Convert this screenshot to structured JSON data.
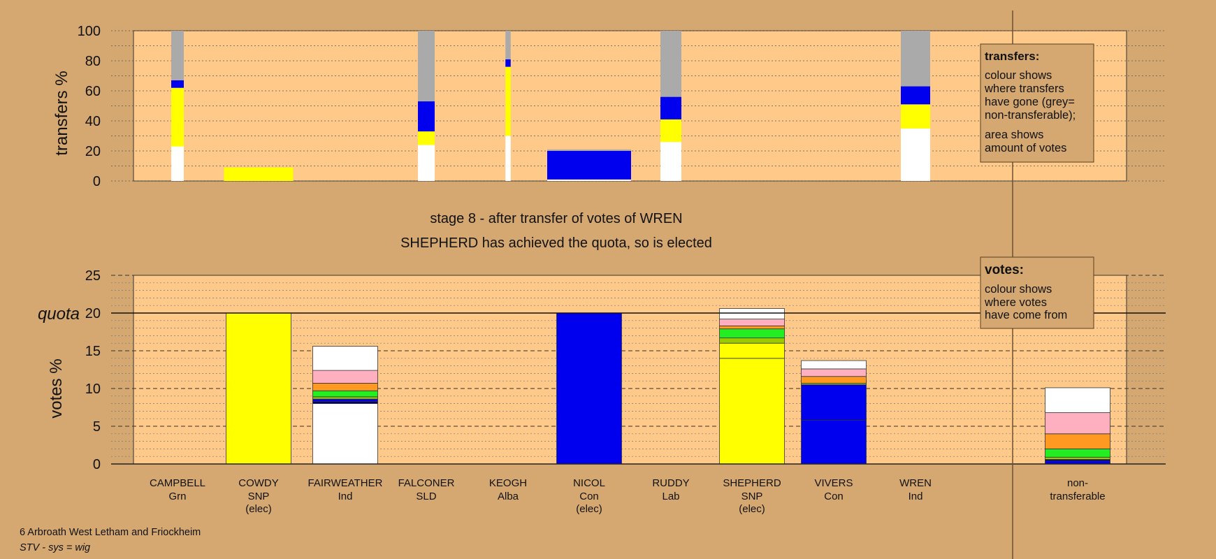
{
  "colors": {
    "background": "#d4a870",
    "plot_bg": "#ffc98a",
    "yellow": "#ffff00",
    "blue": "#0000ee",
    "grey": "#aaaaaa",
    "white": "#ffffff",
    "green": "#22ee22",
    "orange": "#ff9922",
    "pink": "#ffb0c0",
    "olive": "#99cc00",
    "navy": "#000080"
  },
  "title_line1": "stage 8 - after transfer of votes of WREN",
  "title_line2": "SHEPHERD has achieved the quota, so is elected",
  "footer": {
    "ward": "6 Arbroath West Letham and Friockheim",
    "system": "STV - sys = wig"
  },
  "legend_transfers": {
    "title": "transfers:",
    "lines1": [
      "colour shows",
      "where transfers",
      "have gone (grey=",
      "non-transferable);"
    ],
    "lines2": [
      "area shows",
      "amount of votes"
    ]
  },
  "legend_votes": {
    "title": "votes:",
    "lines": [
      "colour shows",
      "where votes",
      "have come from"
    ]
  },
  "candidates": [
    {
      "name": "CAMPBELL",
      "party": "Grn",
      "note": ""
    },
    {
      "name": "COWDY",
      "party": "SNP",
      "note": "(elec)"
    },
    {
      "name": "FAIRWEATHER",
      "party": "Ind",
      "note": ""
    },
    {
      "name": "FALCONER",
      "party": "SLD",
      "note": ""
    },
    {
      "name": "KEOGH",
      "party": "Alba",
      "note": ""
    },
    {
      "name": "NICOL",
      "party": "Con",
      "note": "(elec)"
    },
    {
      "name": "RUDDY",
      "party": "Lab",
      "note": ""
    },
    {
      "name": "SHEPHERD",
      "party": "SNP",
      "note": "(elec)"
    },
    {
      "name": "VIVERS",
      "party": "Con",
      "note": ""
    },
    {
      "name": "WREN",
      "party": "Ind",
      "note": ""
    },
    {
      "name": "non-",
      "party": "transferable",
      "note": ""
    }
  ],
  "chart_data": [
    {
      "type": "bar",
      "stacked": true,
      "ylabel": "transfers %",
      "ylim": [
        0,
        100
      ],
      "yticks": [
        0,
        20,
        40,
        60,
        80,
        100
      ],
      "grid": true,
      "bars": [
        {
          "candidate": "CAMPBELL",
          "share": 0.6,
          "segments": [
            {
              "c": "white",
              "v": 23
            },
            {
              "c": "yellow",
              "v": 39
            },
            {
              "c": "blue",
              "v": 5
            },
            {
              "c": "grey",
              "v": 33
            }
          ]
        },
        {
          "candidate": "COWDY",
          "share": 3.3,
          "segments": [
            {
              "c": "yellow",
              "v": 9
            }
          ]
        },
        {
          "candidate": "FALCONER",
          "share": 0.8,
          "segments": [
            {
              "c": "white",
              "v": 24
            },
            {
              "c": "yellow",
              "v": 9
            },
            {
              "c": "blue",
              "v": 20
            },
            {
              "c": "grey",
              "v": 47
            }
          ]
        },
        {
          "candidate": "KEOGH",
          "share": 0.25,
          "segments": [
            {
              "c": "white",
              "v": 30
            },
            {
              "c": "yellow",
              "v": 46
            },
            {
              "c": "blue",
              "v": 5
            },
            {
              "c": "grey",
              "v": 19
            }
          ]
        },
        {
          "candidate": "NICOL",
          "share": 4.0,
          "segments": [
            {
              "c": "white",
              "v": 1
            },
            {
              "c": "blue",
              "v": 19
            },
            {
              "c": "grey",
              "v": 1
            }
          ]
        },
        {
          "candidate": "RUDDY",
          "share": 1.0,
          "segments": [
            {
              "c": "white",
              "v": 26
            },
            {
              "c": "yellow",
              "v": 15
            },
            {
              "c": "blue",
              "v": 15
            },
            {
              "c": "grey",
              "v": 44
            }
          ]
        },
        {
          "candidate": "WREN",
          "share": 1.4,
          "segments": [
            {
              "c": "white",
              "v": 35
            },
            {
              "c": "yellow",
              "v": 16
            },
            {
              "c": "blue",
              "v": 12
            },
            {
              "c": "grey",
              "v": 37
            }
          ]
        }
      ]
    },
    {
      "type": "bar",
      "stacked": true,
      "ylabel": "votes %",
      "ylim": [
        0,
        25
      ],
      "yticks": [
        0,
        5,
        10,
        15,
        20,
        25
      ],
      "quota": 20,
      "quota_label": "quota",
      "grid": true,
      "bars": [
        {
          "candidate": "COWDY",
          "segments": [
            {
              "c": "yellow",
              "v": 20
            }
          ]
        },
        {
          "candidate": "FAIRWEATHER",
          "segments": [
            {
              "c": "white",
              "v": 8.0
            },
            {
              "c": "navy",
              "v": 0.3
            },
            {
              "c": "blue",
              "v": 0.3
            },
            {
              "c": "olive",
              "v": 0.3
            },
            {
              "c": "green",
              "v": 0.8
            },
            {
              "c": "orange",
              "v": 1.0
            },
            {
              "c": "pink",
              "v": 1.7
            },
            {
              "c": "white",
              "v": 3.2
            }
          ]
        },
        {
          "candidate": "NICOL",
          "segments": [
            {
              "c": "blue",
              "v": 20
            }
          ]
        },
        {
          "candidate": "SHEPHERD",
          "segments": [
            {
              "c": "yellow",
              "v": 14.0
            },
            {
              "c": "yellow",
              "v": 2.0
            },
            {
              "c": "olive",
              "v": 0.7
            },
            {
              "c": "green",
              "v": 1.2
            },
            {
              "c": "orange",
              "v": 0.4
            },
            {
              "c": "pink",
              "v": 0.9
            },
            {
              "c": "white",
              "v": 1.4
            }
          ]
        },
        {
          "candidate": "VIVERS",
          "segments": [
            {
              "c": "blue",
              "v": 5.8
            },
            {
              "c": "blue",
              "v": 4.7
            },
            {
              "c": "olive",
              "v": 0.2
            },
            {
              "c": "orange",
              "v": 0.9
            },
            {
              "c": "pink",
              "v": 1.0
            },
            {
              "c": "white",
              "v": 1.1
            }
          ]
        },
        {
          "candidate": "non-transferable",
          "segments": [
            {
              "c": "blue",
              "v": 0.4
            },
            {
              "c": "navy",
              "v": 0.2
            },
            {
              "c": "olive",
              "v": 0.3
            },
            {
              "c": "green",
              "v": 1.1
            },
            {
              "c": "orange",
              "v": 2.0
            },
            {
              "c": "pink",
              "v": 2.8
            },
            {
              "c": "white",
              "v": 3.3
            }
          ]
        }
      ]
    }
  ]
}
